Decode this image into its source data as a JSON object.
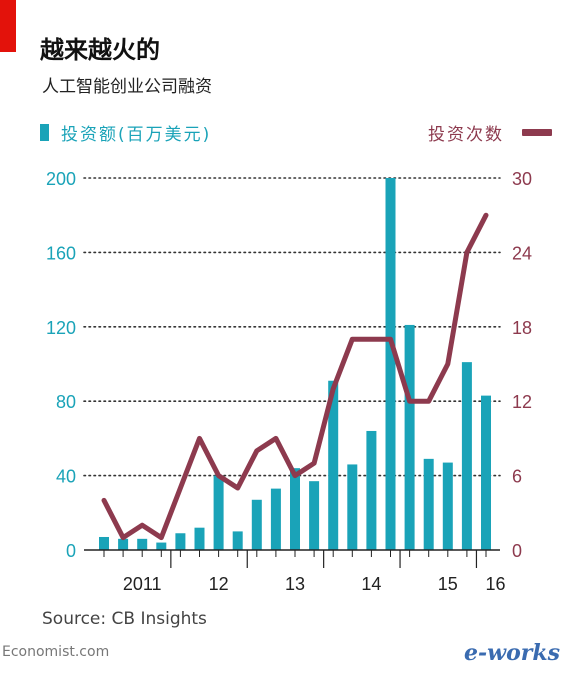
{
  "header": {
    "title": "越来越火的",
    "subtitle": "人工智能创业公司融资"
  },
  "legend": {
    "left": "投资额(百万美元)",
    "right": "投资次数"
  },
  "colors": {
    "bar": "#1aa3b8",
    "line": "#8d3a4e",
    "grid": "#333333",
    "accent_red": "#e3120b"
  },
  "footer": {
    "source": "Source: CB Insights",
    "publisher": "Economist.com",
    "logo": "e-works"
  },
  "chart_data": {
    "type": "bar",
    "title": "越来越火的",
    "subtitle": "人工智能创业公司融资",
    "y_left": {
      "label": "投资额(百万美元)",
      "range": [
        0,
        200
      ],
      "ticks": [
        0,
        40,
        80,
        120,
        160,
        200
      ]
    },
    "y_right": {
      "label": "投资次数",
      "range": [
        0,
        30
      ],
      "ticks": [
        0,
        6,
        12,
        18,
        24,
        30
      ]
    },
    "x_tick_labels": [
      {
        "label": "2011",
        "at_index": 2
      },
      {
        "label": "12",
        "at_index": 6
      },
      {
        "label": "13",
        "at_index": 10
      },
      {
        "label": "14",
        "at_index": 14
      },
      {
        "label": "15",
        "at_index": 18
      },
      {
        "label": "16",
        "at_index": 20.5
      }
    ],
    "grid": "horizontal-dotted",
    "series": [
      {
        "name": "投资额(百万美元)",
        "type": "bar",
        "axis": "left",
        "values": [
          7,
          6,
          6,
          4,
          9,
          12,
          40,
          10,
          27,
          33,
          44,
          37,
          91,
          46,
          64,
          200,
          121,
          49,
          47,
          101,
          83
        ]
      },
      {
        "name": "投资次数",
        "type": "line",
        "axis": "right",
        "values": [
          4,
          1,
          2,
          1,
          5,
          9,
          6,
          5,
          8,
          9,
          6,
          7,
          13,
          17,
          17,
          17,
          12,
          12,
          15,
          24,
          27
        ]
      }
    ]
  }
}
